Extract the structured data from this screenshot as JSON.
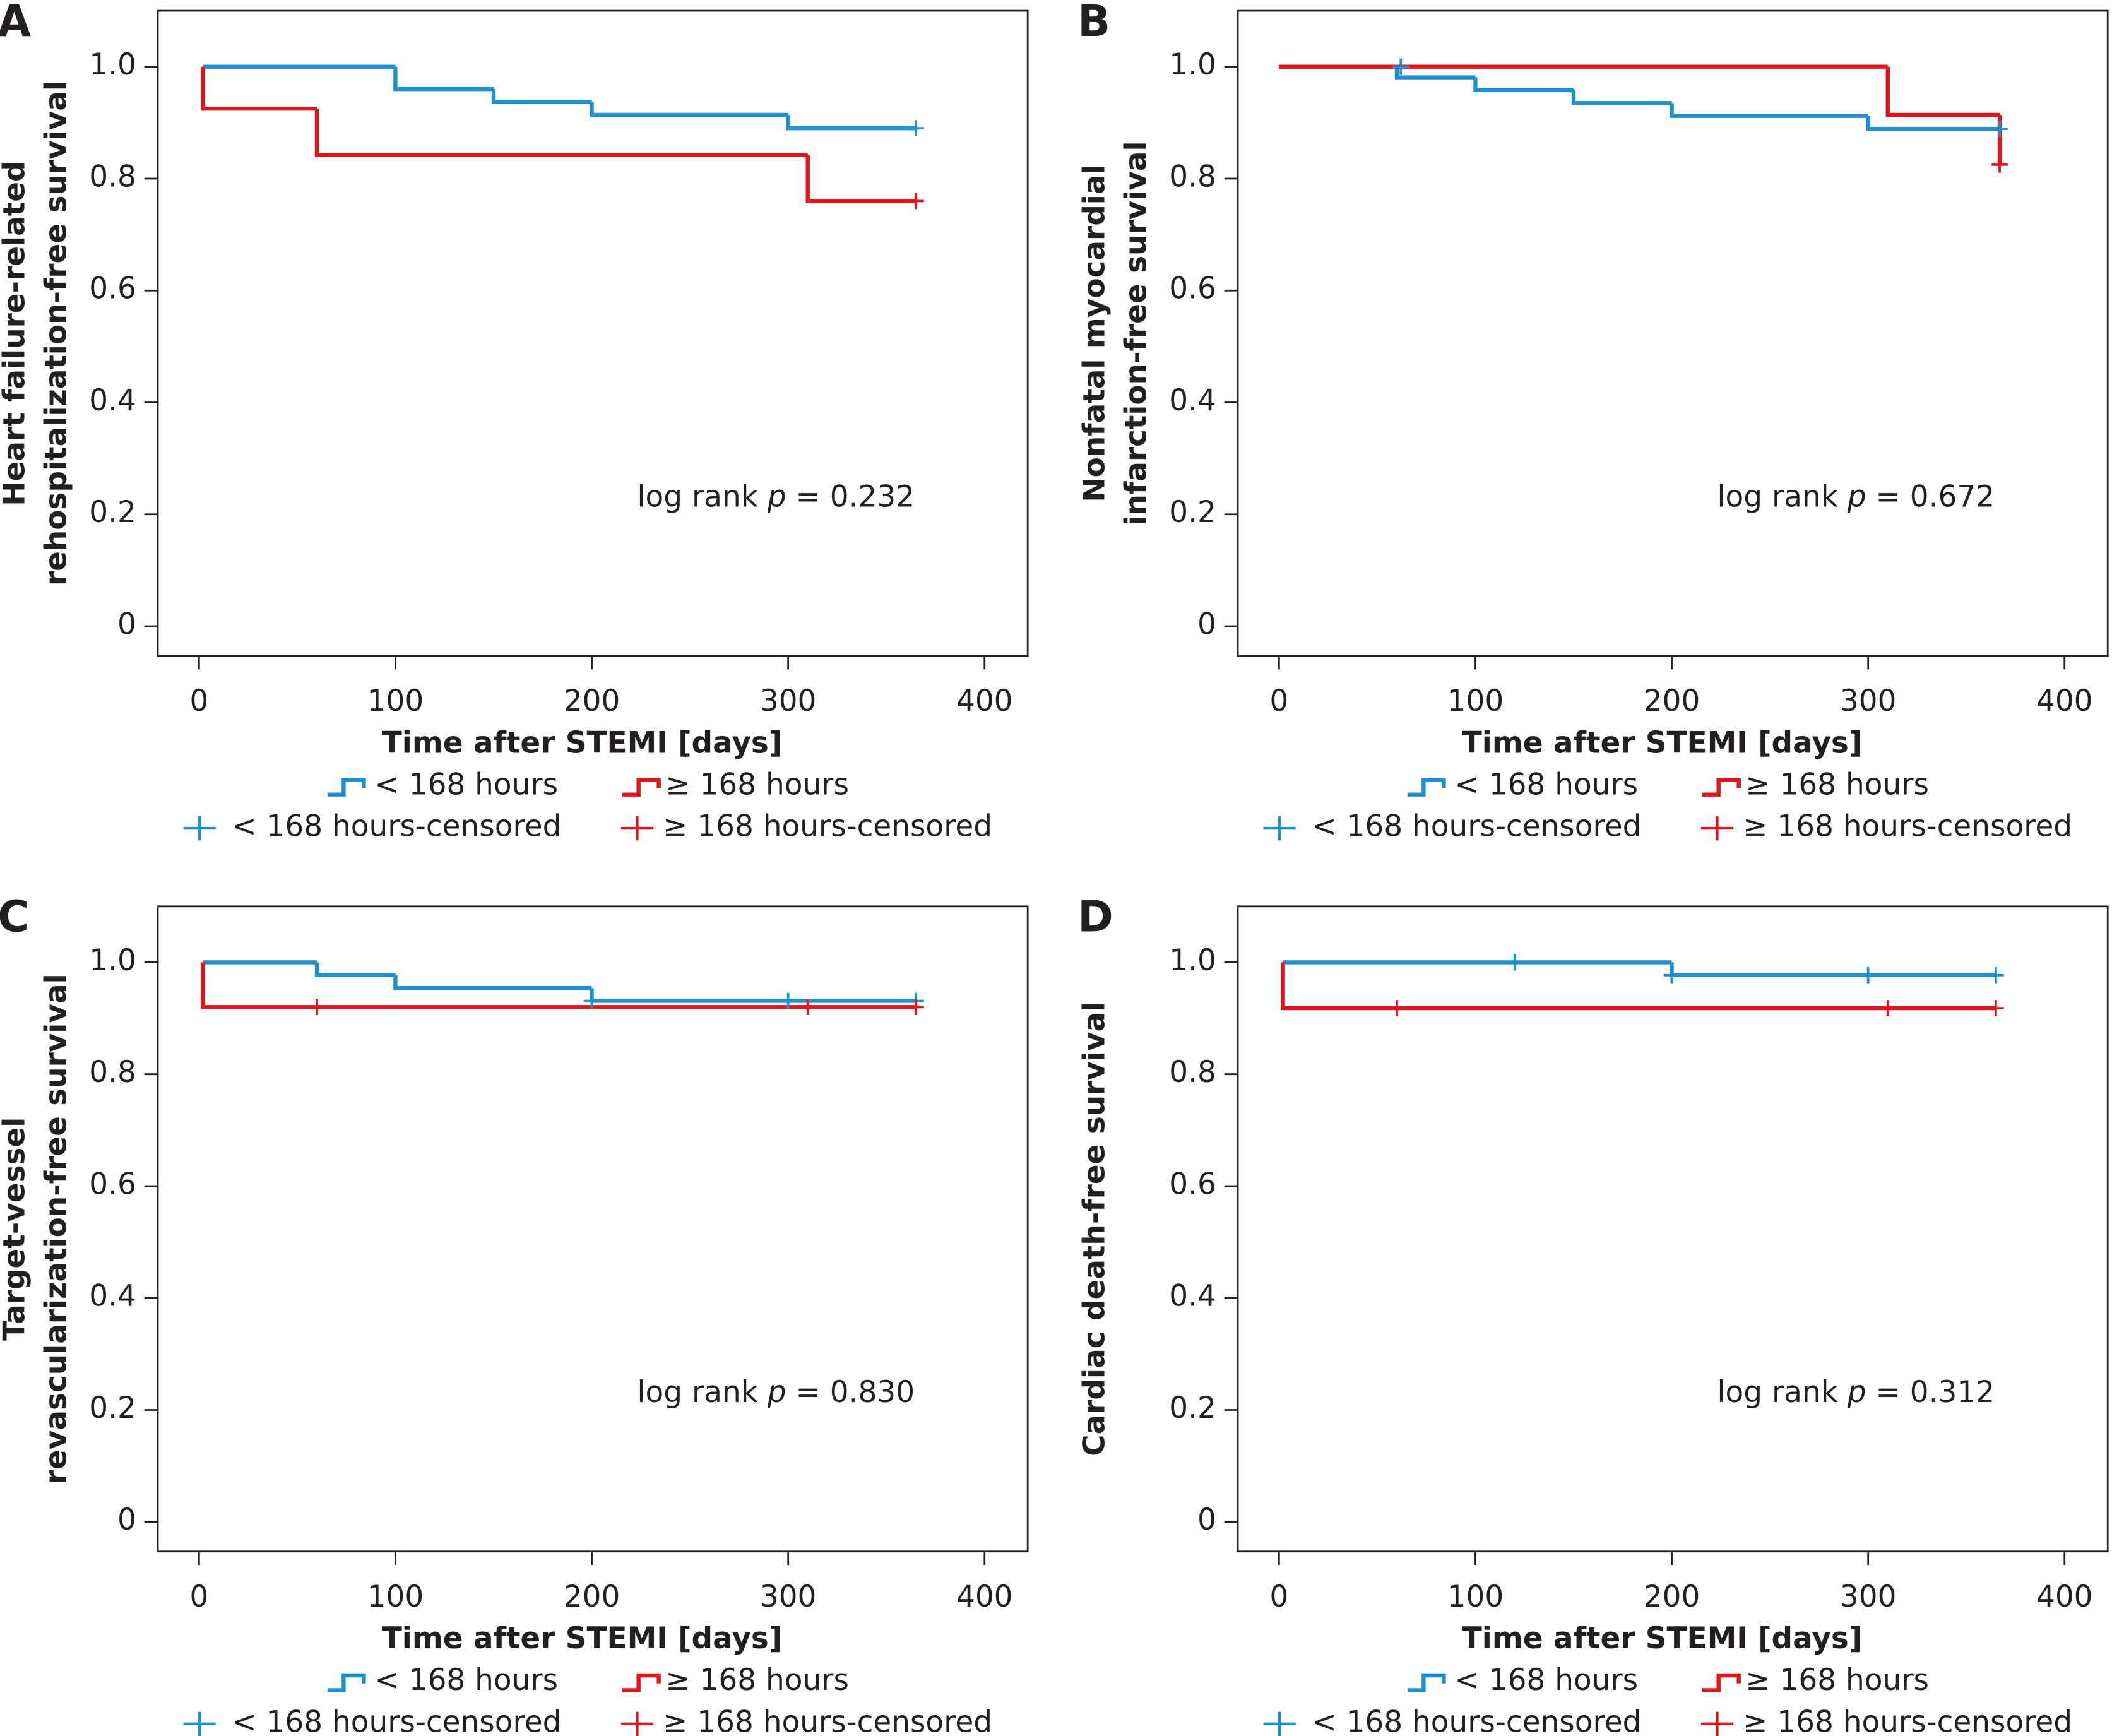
{
  "chart_data": [
    {
      "type": "line",
      "panel": "A",
      "ylabel": [
        "Heart failure-related",
        "rehospitalization-free survival"
      ],
      "xlabel": "Time after STEMI [days]",
      "annotation": {
        "prefix": "log rank ",
        "italic": "p",
        "suffix": " = 0.232"
      },
      "xlim": [
        -21,
        422
      ],
      "ylim": [
        -0.053,
        1.1
      ],
      "xticks": [
        0,
        100,
        200,
        300,
        400
      ],
      "yticks": [
        0,
        0.2,
        0.4,
        0.6,
        0.8,
        {
          "value": 1,
          "label": "1.0"
        }
      ],
      "series": [
        {
          "name": "< 168 hours",
          "style": "step",
          "color": "#1e8fd0",
          "x": [
            2,
            100,
            150,
            200,
            300,
            365
          ],
          "values": [
            1.0,
            0.96,
            0.937,
            0.914,
            0.89,
            0.89
          ]
        },
        {
          "name": "≥ 168 hours",
          "style": "step",
          "color": "#e3141b",
          "x": [
            2,
            2,
            60,
            310,
            365
          ],
          "values": [
            1.0,
            0.925,
            0.842,
            0.76,
            0.76
          ]
        },
        {
          "name": "< 168 hours-censored",
          "style": "censored",
          "color": "#1e8fd0",
          "x": [
            365
          ],
          "values": [
            0.89
          ]
        },
        {
          "name": "≥ 168 hours-censored",
          "style": "censored",
          "color": "#e3141b",
          "x": [
            365
          ],
          "values": [
            0.76
          ]
        }
      ]
    },
    {
      "type": "line",
      "panel": "B",
      "ylabel": [
        "Nonfatal myocardial",
        "infarction-free survival"
      ],
      "xlabel": "Time after STEMI [days]",
      "annotation": {
        "prefix": "log rank ",
        "italic": "p",
        "suffix": " = 0.672"
      },
      "xlim": [
        -21,
        422
      ],
      "ylim": [
        -0.053,
        1.1
      ],
      "xticks": [
        0,
        100,
        200,
        300,
        400
      ],
      "yticks": [
        0,
        0.2,
        0.4,
        0.6,
        0.8,
        {
          "value": 1,
          "label": "1.0"
        }
      ],
      "series": [
        {
          "name": "< 168 hours",
          "style": "step",
          "color": "#1e8fd0",
          "x": [
            0,
            60,
            100,
            150,
            200,
            300,
            367
          ],
          "values": [
            1.0,
            0.981,
            0.958,
            0.935,
            0.912,
            0.889,
            0.889
          ]
        },
        {
          "name": "≥ 168 hours",
          "style": "step",
          "color": "#e3141b",
          "x": [
            0,
            310,
            367,
            367
          ],
          "values": [
            1.0,
            0.914,
            0.914,
            0.825
          ]
        },
        {
          "name": "< 168 hours-censored",
          "style": "censored",
          "color": "#1e8fd0",
          "x": [
            62,
            367
          ],
          "values": [
            1.0,
            0.889
          ]
        },
        {
          "name": "≥ 168 hours-censored",
          "style": "censored",
          "color": "#e3141b",
          "x": [
            367
          ],
          "values": [
            0.825
          ]
        }
      ]
    },
    {
      "type": "line",
      "panel": "C",
      "ylabel": [
        "Target-vessel",
        "revascularization-free survival"
      ],
      "xlabel": "Time after STEMI [days]",
      "annotation": {
        "prefix": "log rank ",
        "italic": "p",
        "suffix": " = 0.830"
      },
      "xlim": [
        -21,
        422
      ],
      "ylim": [
        -0.053,
        1.1
      ],
      "xticks": [
        0,
        100,
        200,
        300,
        400
      ],
      "yticks": [
        0,
        0.2,
        0.4,
        0.6,
        0.8,
        {
          "value": 1,
          "label": "1.0"
        }
      ],
      "series": [
        {
          "name": "< 168 hours",
          "style": "step",
          "color": "#1e8fd0",
          "x": [
            2,
            60,
            100,
            200,
            365
          ],
          "values": [
            1.0,
            0.977,
            0.954,
            0.931,
            0.931
          ]
        },
        {
          "name": "≥ 168 hours",
          "style": "step",
          "color": "#e3141b",
          "x": [
            2,
            2,
            365
          ],
          "values": [
            1.0,
            0.92,
            0.92
          ]
        },
        {
          "name": "< 168 hours-censored",
          "style": "censored",
          "color": "#1e8fd0",
          "x": [
            200,
            300,
            365
          ],
          "values": [
            0.931,
            0.931,
            0.931
          ]
        },
        {
          "name": "≥ 168 hours-censored",
          "style": "censored",
          "color": "#e3141b",
          "x": [
            60,
            310,
            365
          ],
          "values": [
            0.92,
            0.92,
            0.92
          ]
        }
      ]
    },
    {
      "type": "line",
      "panel": "D",
      "ylabel": [
        "Cardiac death-free survival"
      ],
      "xlabel": "Time after STEMI [days]",
      "annotation": {
        "prefix": "log rank ",
        "italic": "p",
        "suffix": " = 0.312"
      },
      "xlim": [
        -21,
        422
      ],
      "ylim": [
        -0.053,
        1.1
      ],
      "xticks": [
        0,
        100,
        200,
        300,
        400
      ],
      "yticks": [
        0,
        0.2,
        0.4,
        0.6,
        0.8,
        {
          "value": 1,
          "label": "1.0"
        }
      ],
      "series": [
        {
          "name": "< 168 hours",
          "style": "step",
          "color": "#1e8fd0",
          "x": [
            2,
            200,
            365
          ],
          "values": [
            1.0,
            0.977,
            0.977
          ]
        },
        {
          "name": "≥ 168 hours",
          "style": "step",
          "color": "#e3141b",
          "x": [
            2,
            2,
            365
          ],
          "values": [
            1.0,
            0.918,
            0.918
          ]
        },
        {
          "name": "< 168 hours-censored",
          "style": "censored",
          "color": "#1e8fd0",
          "x": [
            120,
            200,
            300,
            365
          ],
          "values": [
            1.0,
            0.977,
            0.977,
            0.977
          ]
        },
        {
          "name": "≥ 168 hours-censored",
          "style": "censored",
          "color": "#e3141b",
          "x": [
            60,
            310,
            365
          ],
          "values": [
            0.918,
            0.918,
            0.918
          ]
        }
      ]
    }
  ]
}
